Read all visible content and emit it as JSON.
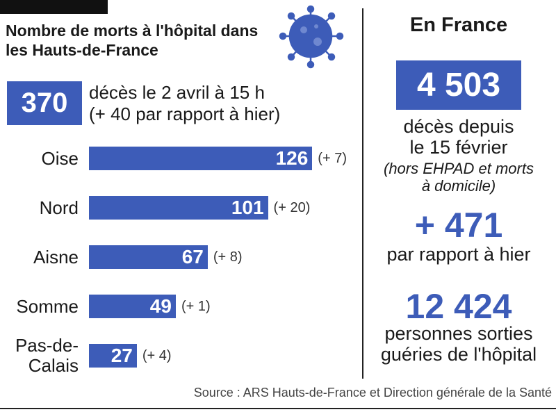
{
  "summary": {
    "total": 370,
    "line1": "décès le 2 avril à 15 h",
    "line2": "(+ 40 par rapport à hier)"
  },
  "chart_data": {
    "type": "bar",
    "title": "Nombre de morts à l'hôpital dans les Hauts-de-France",
    "categories": [
      "Oise",
      "Nord",
      "Aisne",
      "Somme",
      "Pas-de-Calais"
    ],
    "values": [
      126,
      101,
      67,
      49,
      27
    ],
    "annotations": [
      "(+ 7)",
      "(+ 20)",
      "(+ 8)",
      "(+ 1)",
      "(+ 4)"
    ],
    "color": "#3d5cb8"
  },
  "france": {
    "heading": "En France",
    "deaths": "4 503",
    "deaths_text": [
      "décès depuis",
      "le 15 février"
    ],
    "note": [
      "(hors EHPAD et morts",
      "à domicile)"
    ],
    "change": "+ 471",
    "change_text": "par rapport à hier",
    "recovered": "12 424",
    "recovered_text": [
      "personnes sorties",
      "guéries de l'hôpital"
    ]
  },
  "source": "Source : ARS Hauts-de-France et Direction générale de la Santé"
}
